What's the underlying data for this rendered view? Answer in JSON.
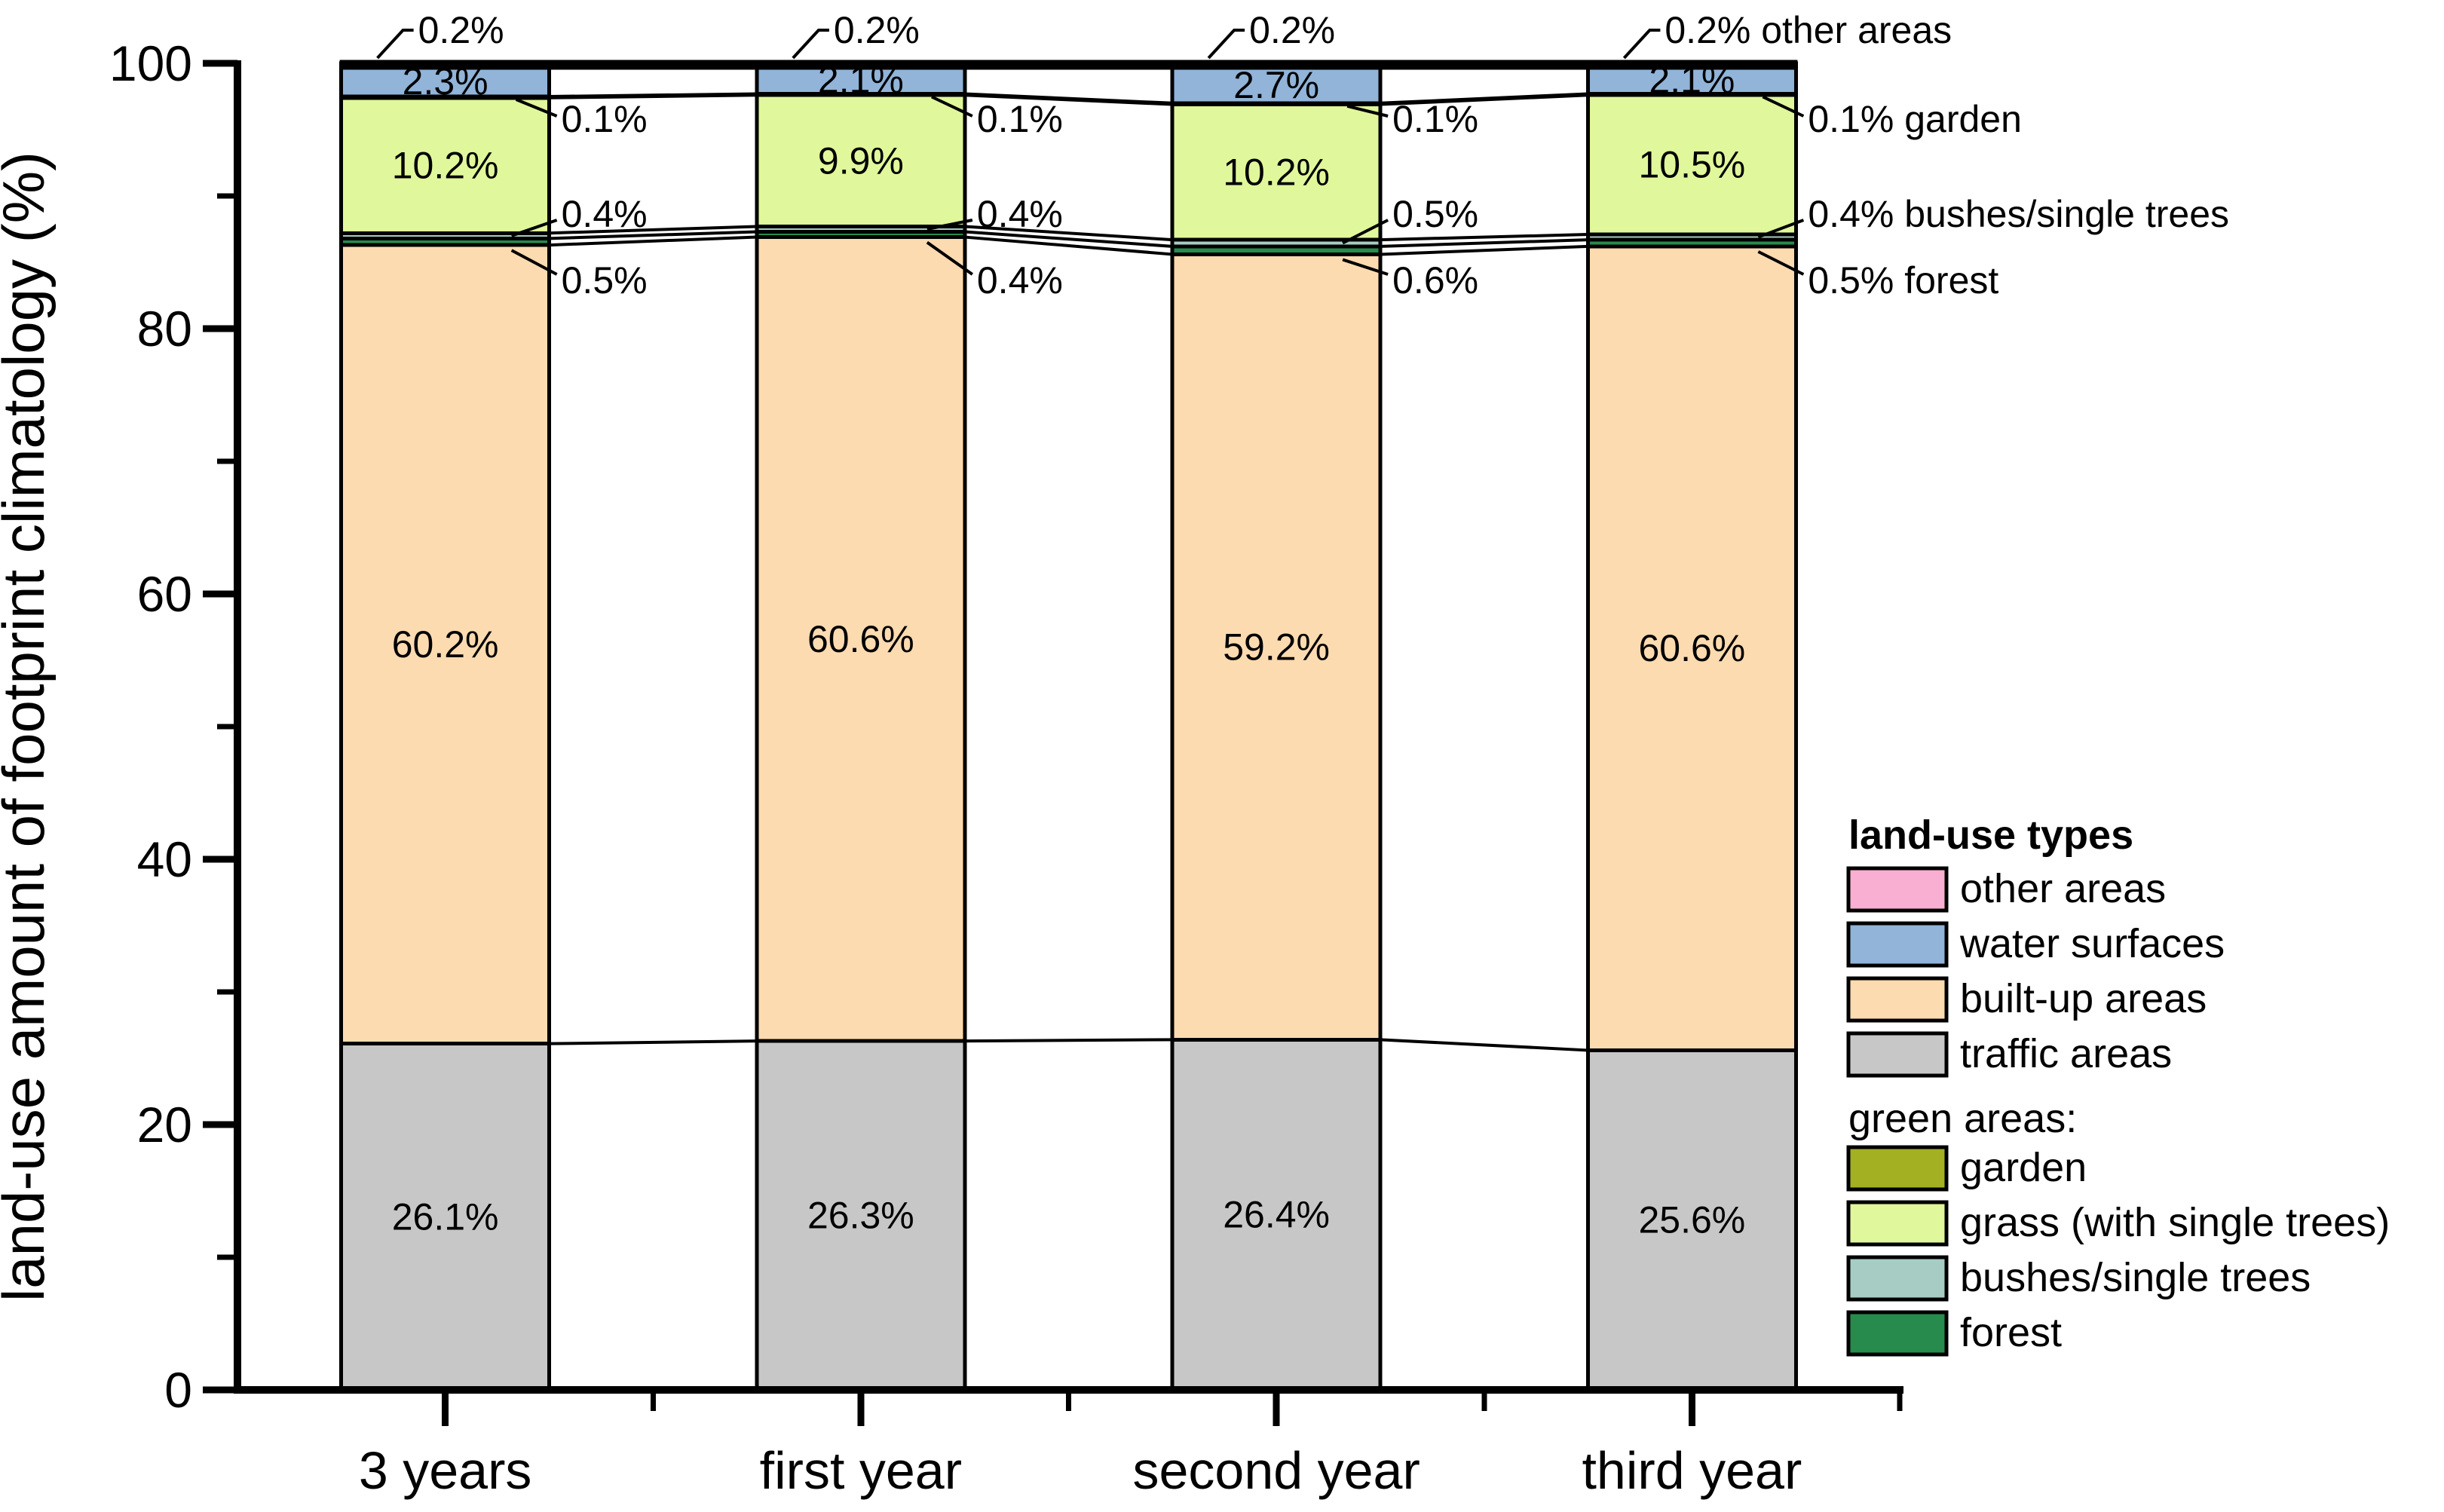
{
  "chart_data": {
    "type": "bar",
    "stacked": true,
    "title": "",
    "categories": [
      "3 years",
      "first year",
      "second year",
      "third year"
    ],
    "series": [
      {
        "name": "traffic areas",
        "color": "#c7c7c7",
        "values": [
          26.1,
          26.3,
          26.4,
          25.6
        ]
      },
      {
        "name": "built-up areas",
        "color": "#fddbb1",
        "values": [
          60.2,
          60.6,
          59.2,
          60.6
        ]
      },
      {
        "name": "forest",
        "color": "#278b4e",
        "values": [
          0.5,
          0.4,
          0.6,
          0.5
        ]
      },
      {
        "name": "bushes/single trees",
        "color": "#a7ccc3",
        "values": [
          0.4,
          0.4,
          0.5,
          0.4
        ]
      },
      {
        "name": "grass (with single trees)",
        "color": "#e0f79b",
        "values": [
          10.2,
          9.9,
          10.2,
          10.5
        ]
      },
      {
        "name": "garden",
        "color": "#a3b021",
        "values": [
          0.1,
          0.1,
          0.1,
          0.1
        ]
      },
      {
        "name": "water surfaces",
        "color": "#91b4d8",
        "values": [
          2.3,
          2.1,
          2.7,
          2.1
        ]
      },
      {
        "name": "other areas",
        "color": "#f8afd1",
        "values": [
          0.2,
          0.2,
          0.2,
          0.2
        ]
      }
    ],
    "labels": {
      "in_bar": [
        "traffic areas",
        "built-up areas",
        "grass (with single trees)",
        "water surfaces"
      ],
      "callout": [
        "other areas",
        "garden",
        "bushes/single trees",
        "forest"
      ],
      "callout_named_bar_index": 3
    },
    "xlabel": "",
    "ylabel": "land-use amount of footprint climatology (%)",
    "ylim": [
      0,
      100
    ],
    "yticks_major": [
      0,
      20,
      40,
      60,
      80,
      100
    ],
    "yticks_minor": [
      10,
      30,
      50,
      70,
      90
    ],
    "grid": false,
    "legend_position": "right"
  },
  "legend": {
    "title": "land-use types",
    "items": [
      {
        "label": "other areas",
        "color": "#f8afd1"
      },
      {
        "label": "water surfaces",
        "color": "#91b4d8"
      },
      {
        "label": "built-up areas",
        "color": "#fddbb1"
      },
      {
        "label": "traffic areas",
        "color": "#c7c7c7"
      }
    ],
    "subtitle": "green areas:",
    "green_items": [
      {
        "label": "garden",
        "color": "#a3b021"
      },
      {
        "label": "grass (with single trees)",
        "color": "#e0f79b"
      },
      {
        "label": "bushes/single trees",
        "color": "#a7ccc3"
      },
      {
        "label": "forest",
        "color": "#278b4e"
      }
    ]
  },
  "axis_color": "#000000"
}
